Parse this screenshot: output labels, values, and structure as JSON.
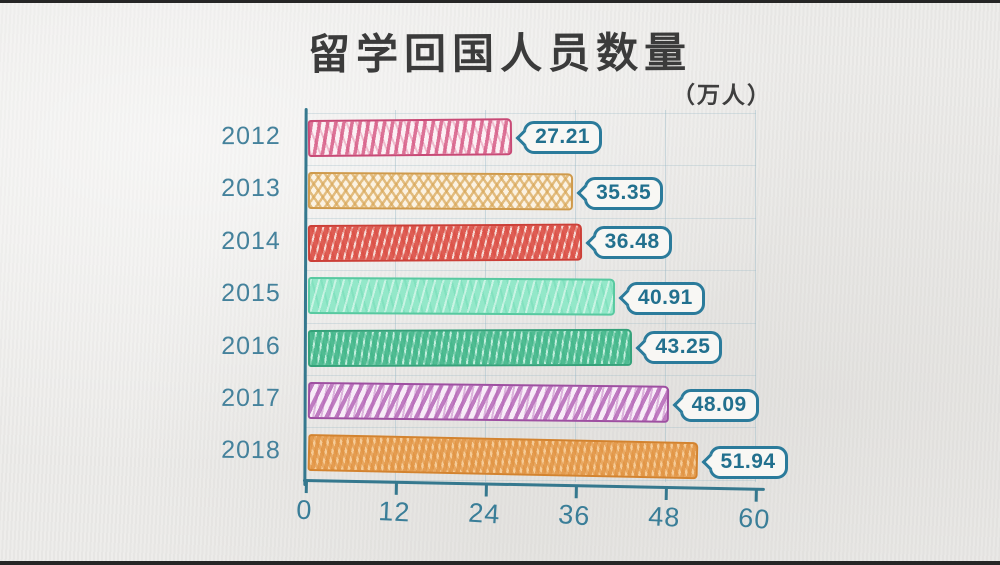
{
  "page": {
    "title": "留学回国人员数量",
    "unit_label": "（万人）"
  },
  "chart_data": {
    "type": "bar",
    "orientation": "horizontal",
    "style": "hand-drawn sketch",
    "title": "留学回国人员数量",
    "unit": "万人",
    "categories": [
      "2012",
      "2013",
      "2014",
      "2015",
      "2016",
      "2017",
      "2018"
    ],
    "values": [
      27.21,
      35.35,
      36.48,
      40.91,
      43.25,
      48.09,
      51.94
    ],
    "value_labels": [
      "27.21",
      "35.35",
      "36.48",
      "40.91",
      "43.25",
      "48.09",
      "51.94"
    ],
    "xlim": [
      0,
      60
    ],
    "x_ticks": [
      0,
      12,
      24,
      36,
      48,
      60
    ],
    "grid": true,
    "legend": "none",
    "axis_color": "#35788e",
    "tick_label_color": "#3a7e98",
    "category_label_color": "#45829c",
    "callout_border_color": "#2b7b9b",
    "callout_text_color": "#22708e",
    "bars": [
      {
        "stroke": "#c84a76",
        "base": "#fcf0f4",
        "layers": [
          {
            "angle": 100,
            "color": "#d4527fcc",
            "on": 3.5,
            "off": 4.5
          },
          {
            "angle": 68,
            "color": "#d4527f55",
            "on": 2,
            "off": 7
          }
        ]
      },
      {
        "stroke": "#cf9a4b",
        "base": "#fbf2e2",
        "layers": [
          {
            "angle": 55,
            "color": "#d9a85abb",
            "on": 2.5,
            "off": 5
          },
          {
            "angle": 125,
            "color": "#d9a85abb",
            "on": 2.5,
            "off": 5
          }
        ]
      },
      {
        "stroke": "#cc3f37",
        "base": "#f6d9d3",
        "layers": [
          {
            "angle": 105,
            "color": "#da4a40dd",
            "on": 5,
            "off": 2
          },
          {
            "angle": 65,
            "color": "#da4a4088",
            "on": 3,
            "off": 4
          }
        ]
      },
      {
        "stroke": "#58c9a0",
        "base": "#93e8c9",
        "layers": [
          {
            "angle": 105,
            "color": "#ffffff80",
            "on": 2,
            "off": 6
          },
          {
            "angle": 75,
            "color": "#5fd4ab55",
            "on": 2,
            "off": 7
          }
        ]
      },
      {
        "stroke": "#35a27a",
        "base": "#c2eedd",
        "layers": [
          {
            "angle": 100,
            "color": "#3eb487dd",
            "on": 5,
            "off": 2
          },
          {
            "angle": 70,
            "color": "#3eb48788",
            "on": 3,
            "off": 3
          }
        ]
      },
      {
        "stroke": "#9e4fa1",
        "base": "#f8ecf8",
        "layers": [
          {
            "angle": 115,
            "color": "#b160b3cc",
            "on": 4,
            "off": 5
          },
          {
            "angle": 100,
            "color": "#b160b366",
            "on": 2,
            "off": 6
          }
        ]
      },
      {
        "stroke": "#d3832f",
        "base": "#f5cb97",
        "layers": [
          {
            "angle": 100,
            "color": "#e0913fcc",
            "on": 4,
            "off": 2.5
          },
          {
            "angle": 60,
            "color": "#e0913f99",
            "on": 3,
            "off": 3
          }
        ]
      }
    ]
  }
}
